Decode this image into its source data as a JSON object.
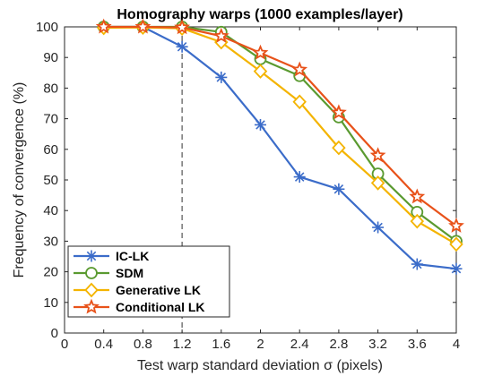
{
  "chart_data": {
    "type": "line",
    "title": "Homography warps (1000 examples/layer)",
    "xlabel": "Test warp standard deviation σ (pixels)",
    "ylabel": "Frequency of convergence (%)",
    "xlim": [
      0,
      4
    ],
    "ylim": [
      0,
      100
    ],
    "xticks": [
      "0",
      "0.4",
      "0.8",
      "1.2",
      "1.6",
      "2",
      "2.4",
      "2.8",
      "3.2",
      "3.6",
      "4"
    ],
    "yticks": [
      "0",
      "10",
      "20",
      "30",
      "40",
      "50",
      "60",
      "70",
      "80",
      "90",
      "100"
    ],
    "reference_line_x": 1.2,
    "legend_position": "bottom-left",
    "x": [
      0.4,
      0.8,
      1.2,
      1.6,
      2.0,
      2.4,
      2.8,
      3.2,
      3.6,
      4.0
    ],
    "series": [
      {
        "name": "IC-LK",
        "color": "#3b6cc9",
        "marker": "asterisk",
        "values": [
          100,
          100,
          93.5,
          83.5,
          68,
          51,
          47,
          34.5,
          22.5,
          21
        ]
      },
      {
        "name": "SDM",
        "color": "#5a9a30",
        "marker": "circle",
        "values": [
          100,
          100,
          100,
          98.3,
          89.5,
          84,
          70.5,
          52,
          39.5,
          30
        ]
      },
      {
        "name": "Generative LK",
        "color": "#f4b400",
        "marker": "diamond",
        "values": [
          99.7,
          99.8,
          99.5,
          95,
          85.5,
          75.5,
          60.5,
          49,
          36.5,
          29
        ]
      },
      {
        "name": "Conditional LK",
        "color": "#e8521a",
        "marker": "star",
        "values": [
          100,
          100,
          99.8,
          97,
          91.5,
          86,
          72,
          58,
          44.5,
          35
        ]
      }
    ]
  }
}
